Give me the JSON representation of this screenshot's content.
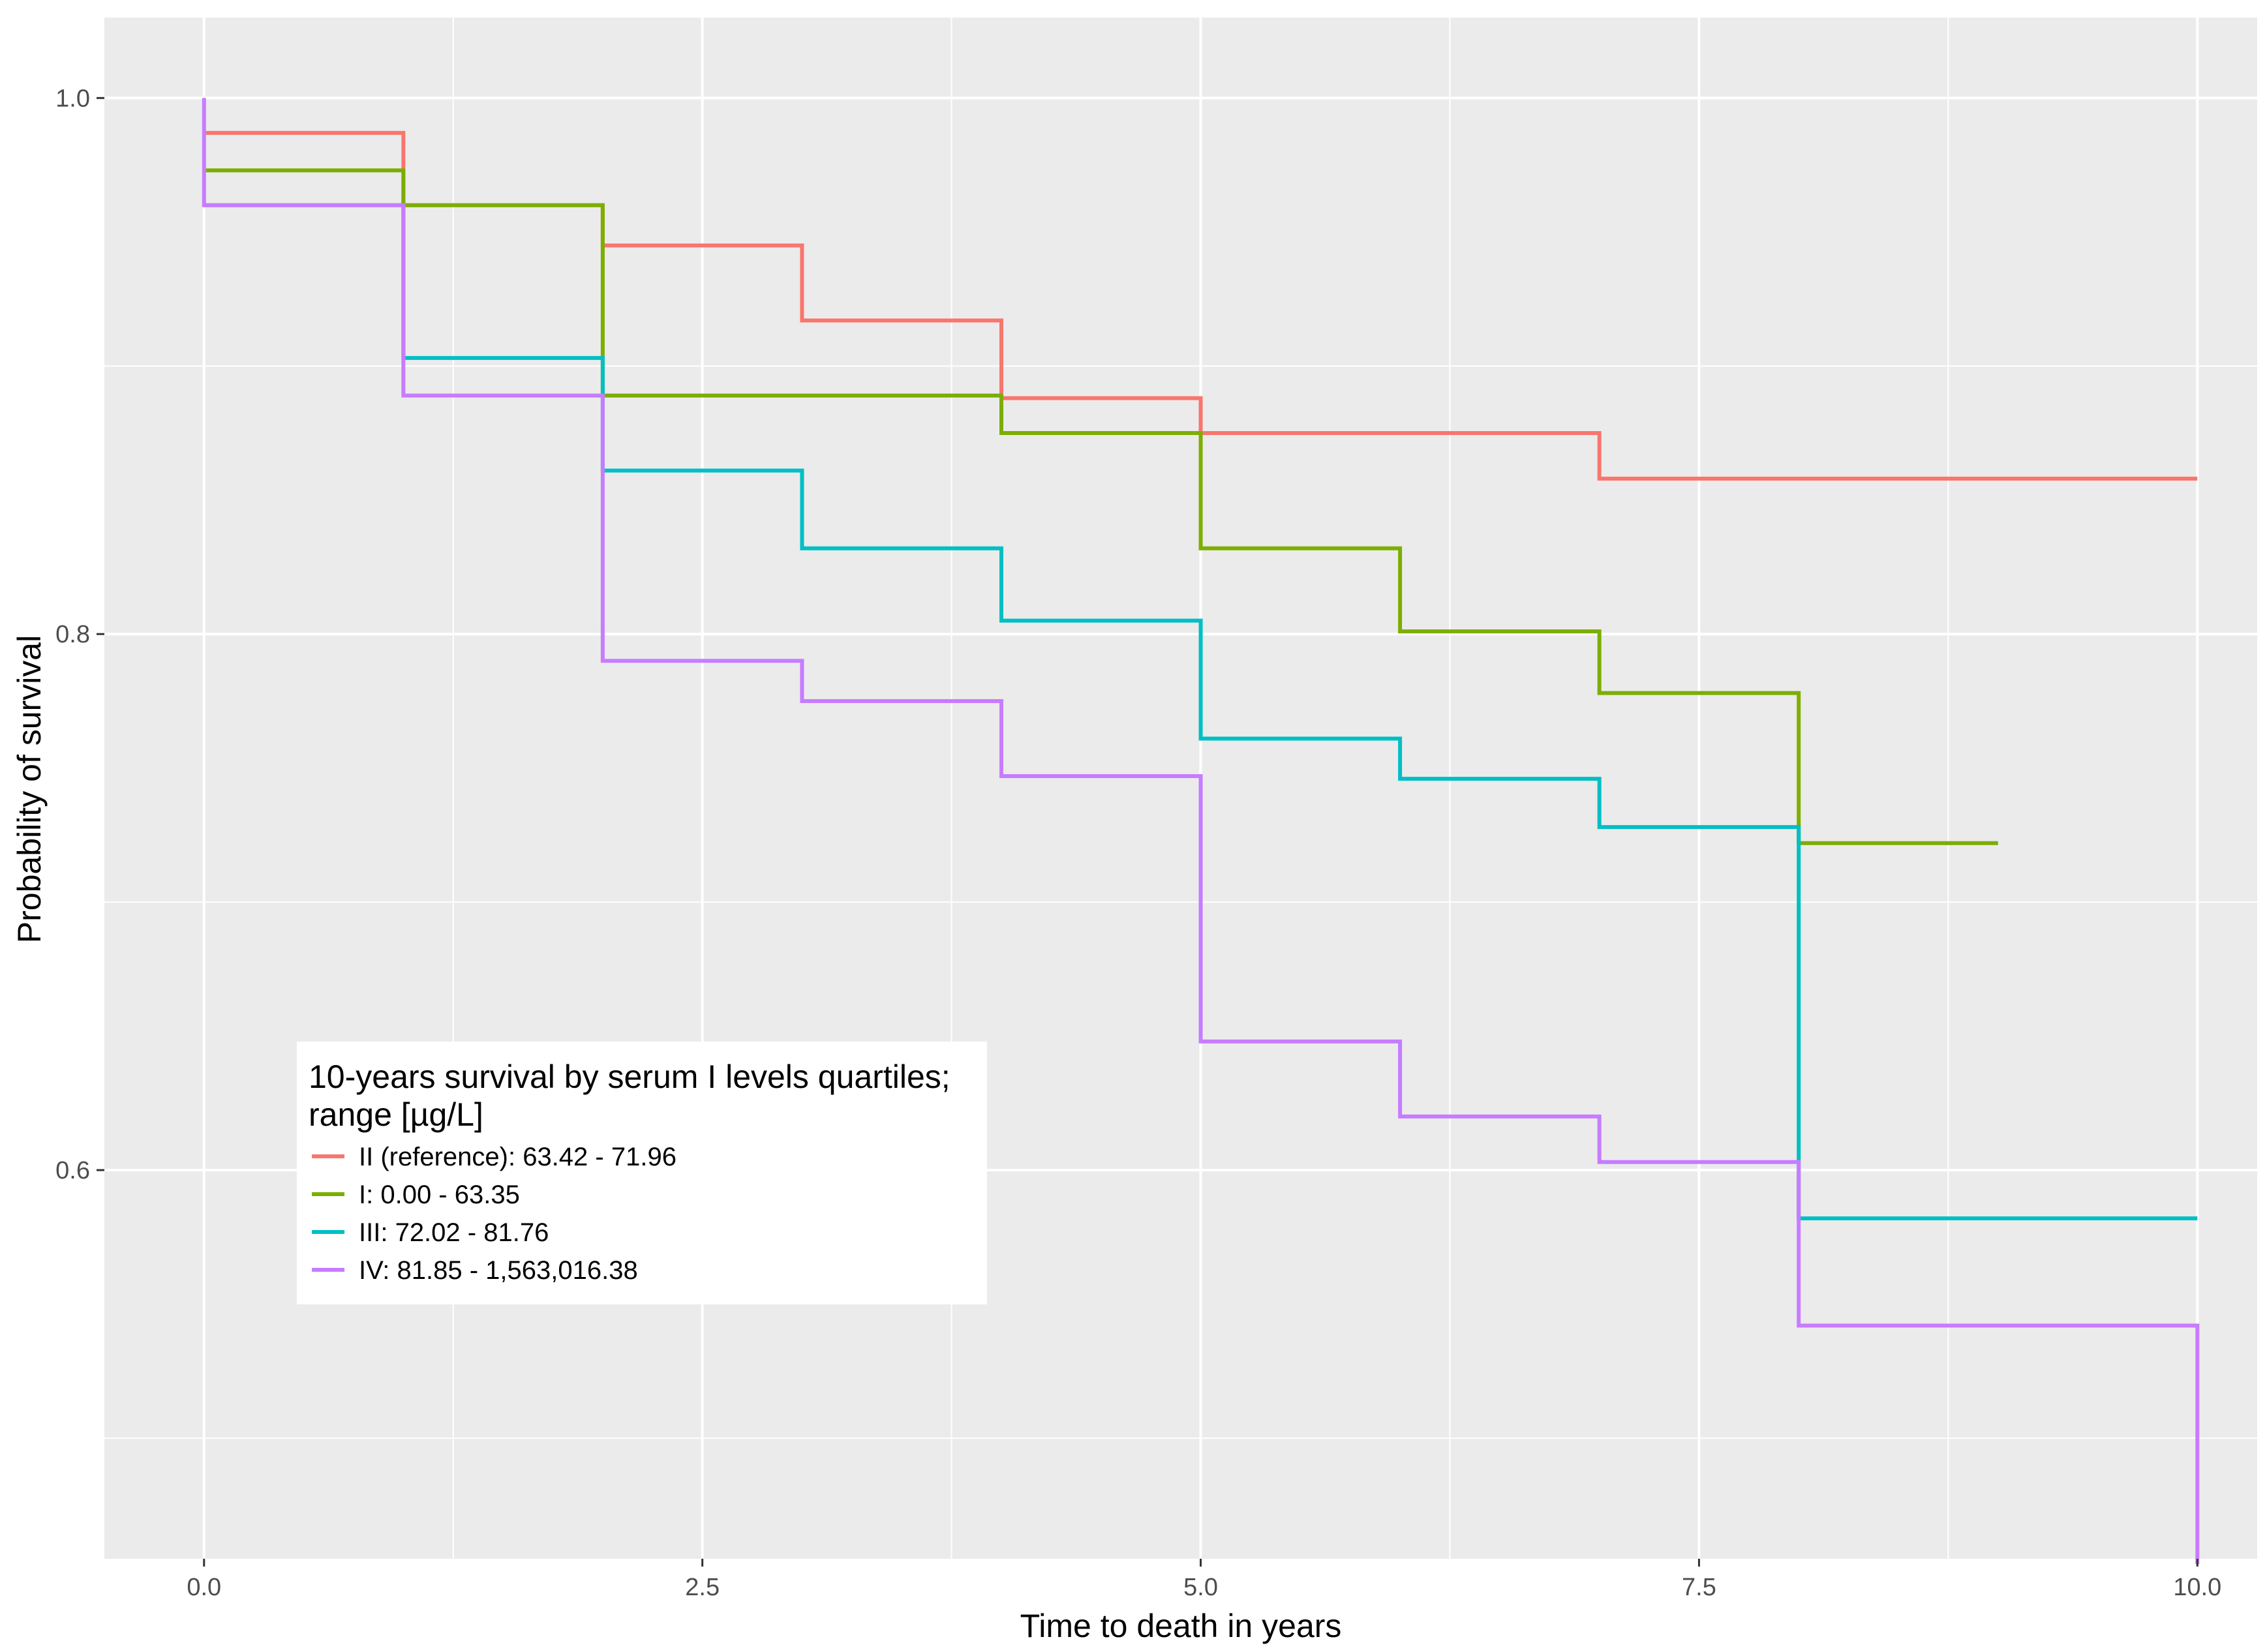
{
  "chart_data": {
    "type": "line",
    "subtype": "step",
    "title": "",
    "xlabel": "Time to death in years",
    "ylabel": "Probability of survival",
    "xlim": [
      -0.5,
      10.3
    ],
    "ylim": [
      0.455,
      1.03
    ],
    "x_ticks": [
      0,
      2.5,
      5,
      7.5,
      10
    ],
    "x_tick_labels": [
      "0.0",
      "2.5",
      "5.0",
      "7.5",
      "10.0"
    ],
    "y_ticks": [
      0.6,
      0.8,
      1.0
    ],
    "y_tick_labels": [
      "0.6",
      "0.8",
      "1.0"
    ],
    "y_minor_grid": [
      0.5,
      0.7,
      0.9
    ],
    "grid": true,
    "legend": {
      "title_line1": "10-years survival by serum I levels quartiles;",
      "title_line2": "range [µg/L]",
      "placement": "bottom-left"
    },
    "series": [
      {
        "name": "II (reference): 63.42 - 71.96",
        "color": "#F8766D",
        "x": [
          0,
          1,
          2,
          3,
          4,
          5,
          7,
          10
        ],
        "y": [
          0.987,
          0.96,
          0.945,
          0.917,
          0.888,
          0.875,
          0.858,
          0.858
        ]
      },
      {
        "name": "I: 0.00 - 63.35",
        "color": "#7CAE00",
        "x": [
          0,
          1,
          2,
          4,
          5,
          6,
          7,
          8,
          9
        ],
        "y": [
          0.973,
          0.96,
          0.889,
          0.875,
          0.832,
          0.801,
          0.778,
          0.722,
          0.722
        ]
      },
      {
        "name": "III: 72.02 - 81.76",
        "color": "#00BFC4",
        "x": [
          0,
          1,
          2,
          3,
          4,
          5,
          6,
          7,
          8,
          10
        ],
        "y": [
          0.96,
          0.903,
          0.861,
          0.832,
          0.805,
          0.761,
          0.746,
          0.728,
          0.582,
          0.582
        ]
      },
      {
        "name": "IV: 81.85 - 1,563,016.38",
        "color": "#C77CFF",
        "x": [
          0,
          0,
          1,
          2,
          3,
          4,
          5,
          6,
          7,
          8,
          10,
          10
        ],
        "y": [
          1.0,
          0.96,
          0.889,
          0.79,
          0.775,
          0.747,
          0.648,
          0.62,
          0.603,
          0.542,
          0.542,
          0.453
        ]
      }
    ]
  }
}
